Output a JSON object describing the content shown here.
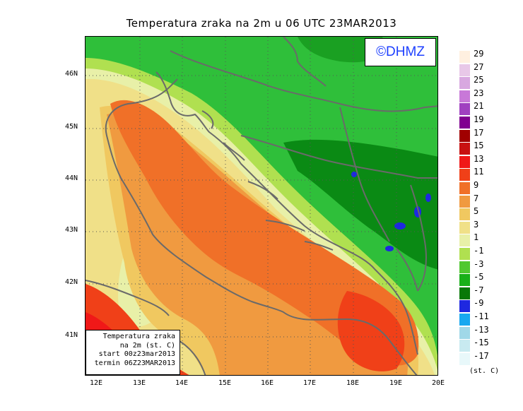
{
  "title": "Temperatura zraka na 2m u 06 UTC 23MAR2013",
  "logo": "©DHMZ",
  "info_box": {
    "line1": "Temperatura zraka",
    "line2": "na 2m (st. C)",
    "line3": "start 00z23mar2013",
    "line4": "termin 06Z23MAR2013"
  },
  "axes": {
    "longitude_labels": [
      "12E",
      "13E",
      "14E",
      "15E",
      "16E",
      "17E",
      "18E",
      "19E",
      "20E"
    ],
    "latitude_labels": [
      "46N",
      "45N",
      "44N",
      "43N",
      "42N",
      "41N"
    ]
  },
  "legend": {
    "unit": "(st. C)",
    "labels": [
      "29",
      "27",
      "25",
      "23",
      "21",
      "19",
      "17",
      "15",
      "13",
      "11",
      "9",
      "7",
      "5",
      "3",
      "1",
      "-1",
      "-3",
      "-5",
      "-7",
      "-9",
      "-11",
      "-13",
      "-15",
      "-17"
    ],
    "colors": [
      "#fff0e0",
      "#e8c8e8",
      "#d8a8e0",
      "#c878d8",
      "#a040c0",
      "#800090",
      "#a00000",
      "#c81010",
      "#f01818",
      "#f04018",
      "#f07028",
      "#f09a40",
      "#f0c860",
      "#f0e088",
      "#e8f0a8",
      "#b0e050",
      "#50c830",
      "#18b018",
      "#087808",
      "#1e28e0",
      "#18a8f0",
      "#a0d8e8",
      "#c8eaf0",
      "#e8f8fa"
    ]
  },
  "palette": {
    "green_cold": "#087808",
    "green": "#18b018",
    "green_light": "#50c830",
    "lime": "#b0e050",
    "pale": "#e8f0a8",
    "yellow": "#f0e088",
    "gold": "#f0c860",
    "orange_light": "#f09a40",
    "orange": "#f07028",
    "red_orange": "#f04018",
    "red": "#f01818",
    "blue": "#1e28e0",
    "coast": "#6a6a6a"
  }
}
